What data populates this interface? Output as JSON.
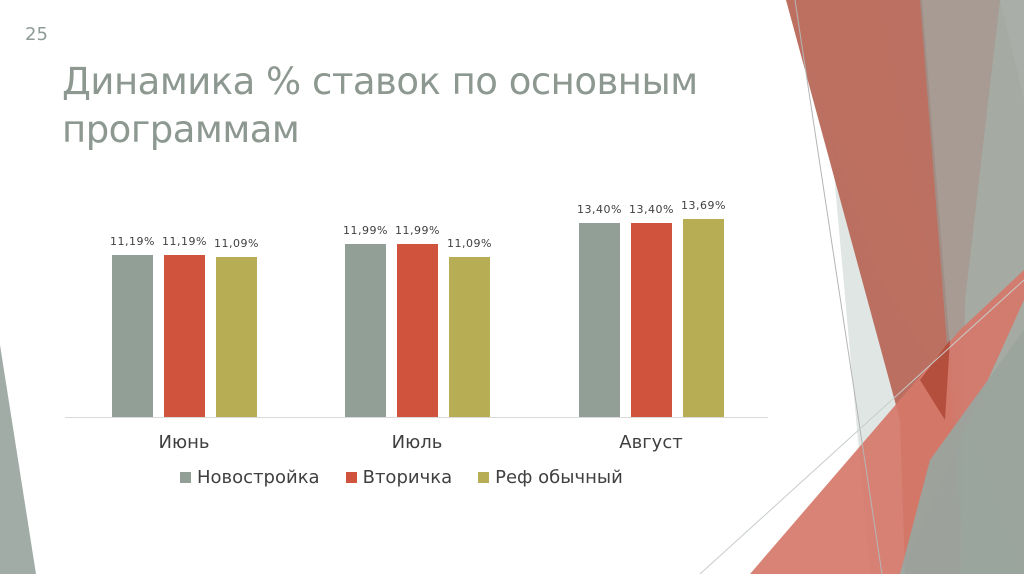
{
  "slide": {
    "number": "25",
    "title": "Динамика % ставок по основным программам"
  },
  "colors": {
    "novostroyka": "#919f97",
    "vtorichka": "#d0533e",
    "ref": "#b6ad55",
    "title_text": "#8d9891",
    "axis_text": "#404040"
  },
  "chart_data": {
    "type": "bar",
    "title": "Динамика % ставок по основным программам",
    "categories": [
      "Июнь",
      "Июль",
      "Август"
    ],
    "series": [
      {
        "name": "Новостройка",
        "values": [
          11.19,
          11.99,
          13.4
        ],
        "labels": [
          "11,19%",
          "11,99%",
          "13,40%"
        ],
        "color": "#919f97"
      },
      {
        "name": "Вторичка",
        "values": [
          11.19,
          11.99,
          13.4
        ],
        "labels": [
          "11,19%",
          "11,99%",
          "13,40%"
        ],
        "color": "#d0533e"
      },
      {
        "name": "Реф обычный",
        "values": [
          11.09,
          11.09,
          13.69
        ],
        "labels": [
          "11,09%",
          "11,09%",
          "13,69%"
        ],
        "color": "#b6ad55"
      }
    ],
    "xlabel": "",
    "ylabel": "",
    "ylim": [
      0,
      14
    ],
    "grid": false,
    "legend_position": "bottom",
    "data_labels": true
  }
}
